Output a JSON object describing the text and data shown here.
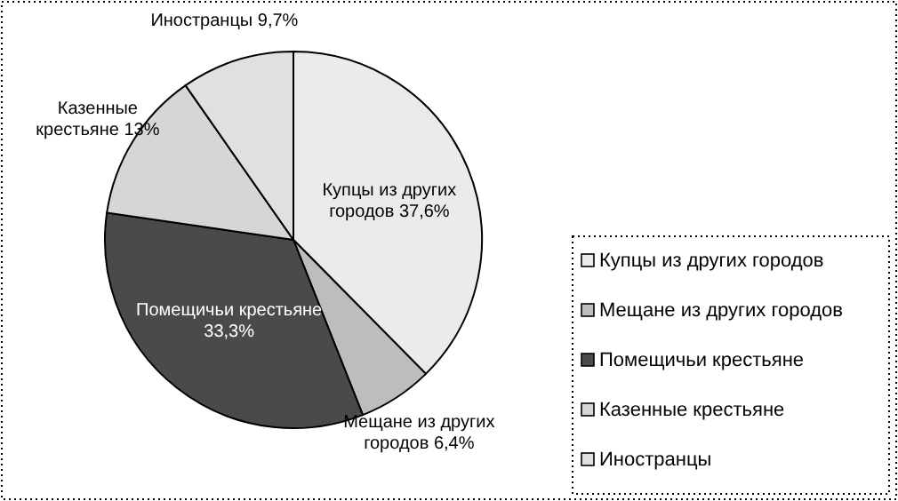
{
  "chart_data": {
    "type": "pie",
    "categories": [
      "Купцы из других городов",
      "Мещане из других городов",
      "Помещичьи крестьяне",
      "Казенные крестьяне",
      "Иностранцы"
    ],
    "values": [
      37.6,
      6.4,
      33.3,
      13,
      9.7
    ],
    "value_labels": [
      "37,6%",
      "6,4%",
      "33,3%",
      "13%",
      "9,7%"
    ],
    "colors": [
      "#ebebeb",
      "#bdbdbd",
      "#4a4a4a",
      "#d6d6d6",
      "#e0e0e0"
    ],
    "legend": "right"
  }
}
